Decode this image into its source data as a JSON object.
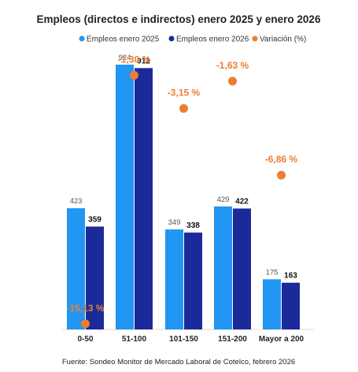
{
  "chart_data": {
    "type": "bar",
    "title": "Empleos (directos e indirectos) enero 2025 y enero 2026",
    "categories": [
      "0-50",
      "51-100",
      "101-150",
      "151-200",
      "Mayor a 200"
    ],
    "series": [
      {
        "name": "Empleos enero 2025",
        "values": [
          423,
          924,
          349,
          429,
          175
        ],
        "color": "#2196F3"
      },
      {
        "name": "Empleos enero 2026",
        "values": [
          359,
          912,
          338,
          422,
          163
        ],
        "color": "#1A2A9A"
      }
    ],
    "line_series": {
      "name": "Variación (%)",
      "values": [
        -15.13,
        -1.3,
        -3.15,
        -1.63,
        -6.86
      ],
      "labels": [
        "-15,13 %",
        "-1,30 %",
        "-3,15 %",
        "-1,63 %",
        "-6,86 %"
      ],
      "color": "#ED7D31"
    },
    "source": "Fuente: Sondeo Monitor de Mercado Laboral de Cotelco, febrero 2026"
  }
}
